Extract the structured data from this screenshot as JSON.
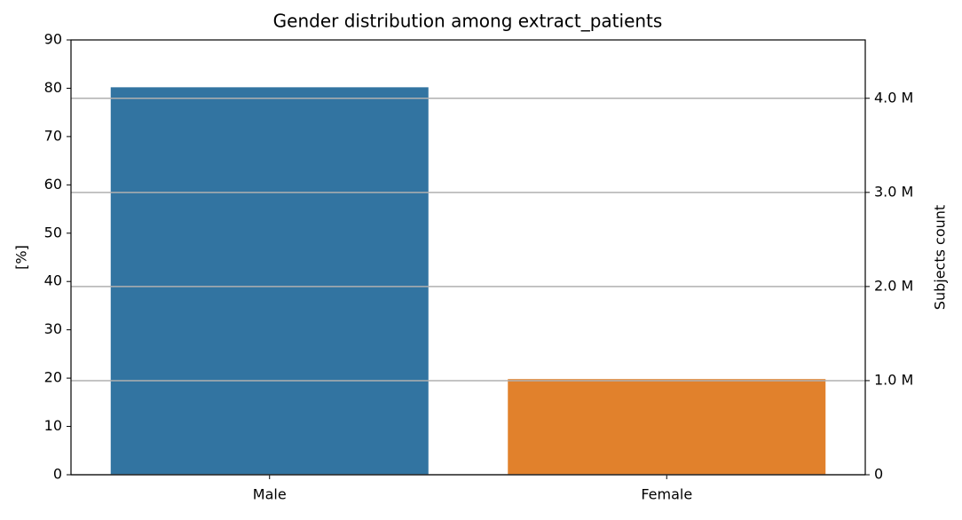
{
  "chart_data": {
    "type": "bar",
    "title": "Gender distribution among extract_patients",
    "categories": [
      "Male",
      "Female"
    ],
    "values": [
      80.2,
      19.8
    ],
    "colors": [
      "#3274a1",
      "#e1812c"
    ],
    "ylabel": "[%]",
    "ylim": [
      0,
      90
    ],
    "yticks": [
      0,
      10,
      20,
      30,
      40,
      50,
      60,
      70,
      80,
      90
    ],
    "y2label": "Subjects count",
    "y2lim": [
      0,
      4620000
    ],
    "y2ticks": [
      0,
      {
        "value": 1000000,
        "label": "1.0 M"
      },
      {
        "value": 2000000,
        "label": "2.0 M"
      },
      {
        "value": 3000000,
        "label": "3.0 M"
      },
      {
        "value": 4000000,
        "label": "4.0 M"
      }
    ],
    "grid": "y2"
  }
}
